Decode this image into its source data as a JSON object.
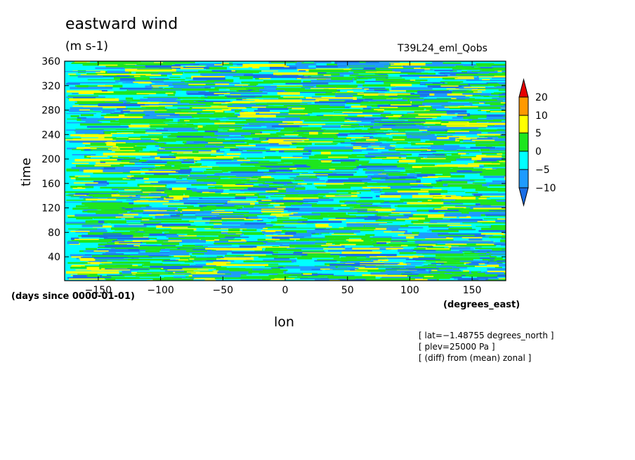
{
  "chart_data": {
    "type": "heatmap",
    "title": "eastward wind",
    "units": "(m s-1)",
    "experiment": "T39L24_eml_Qobs",
    "xlabel": "lon",
    "xunits": "(degrees_east)",
    "ylabel": "time",
    "yunits": "(days since 0000-01-01)",
    "xlim": [
      -177,
      177
    ],
    "ylim": [
      1,
      360
    ],
    "x_ticks": [
      -150,
      -100,
      -50,
      0,
      50,
      100,
      150
    ],
    "x_tick_labels": [
      "−150",
      "−100",
      "−50",
      "0",
      "50",
      "100",
      "150"
    ],
    "y_ticks": [
      40,
      80,
      120,
      160,
      200,
      240,
      280,
      320,
      360
    ],
    "y_tick_labels": [
      "40",
      "80",
      "120",
      "160",
      "200",
      "240",
      "280",
      "320",
      "360"
    ],
    "colorbar": {
      "levels": [
        -10,
        -5,
        0,
        5,
        10,
        20
      ],
      "level_labels": [
        "−10",
        "−5",
        "0",
        "5",
        "10",
        "20"
      ],
      "colors": [
        "#1a6ee6",
        "#1e9bff",
        "#00ffff",
        "#1ee61e",
        "#ffff00",
        "#ff9900",
        "#e60000"
      ],
      "extend": "both"
    },
    "annotations": [
      "[ lat=−1.48755 degrees_north ]",
      "[ plev=25000 Pa ]",
      "[ (diff) from (mean) zonal ]"
    ]
  }
}
